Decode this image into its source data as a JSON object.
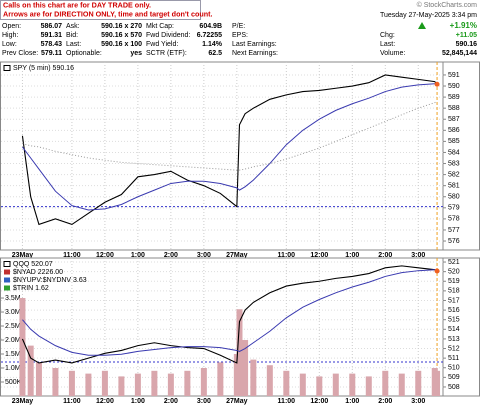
{
  "header": {
    "notice": [
      "Calls on this chart are for DAY TRADE only.",
      "Arrows are for DIRECTION ONLY, time and target don't count."
    ],
    "brand": "© StockCharts.com",
    "timestamp": "Tuesday 27-May-2025 3:34 pm"
  },
  "quote": {
    "col1": [
      [
        "Open:",
        "586.07"
      ],
      [
        "High:",
        "591.31"
      ],
      [
        "Low:",
        "578.43"
      ],
      [
        "Prev Close:",
        "579.11"
      ]
    ],
    "col2": [
      [
        "Ask:",
        "590.16 x 270"
      ],
      [
        "Bid:",
        "590.16 x 570"
      ],
      [
        "Last:",
        "590.16 x 100"
      ],
      [
        "Optionable:",
        "yes"
      ]
    ],
    "col3": [
      [
        "Mkt Cap:",
        "604.9B"
      ],
      [
        "Fwd Dividend:",
        "6.72255"
      ],
      [
        "Fwd Yield:",
        "1.14%"
      ],
      [
        "SCTR (ETF):",
        "62.5"
      ]
    ],
    "col4": [
      "P/E:",
      "EPS:",
      "Last Earnings:",
      "Next Earnings:"
    ],
    "change_pct": "+1.91%",
    "col5": [
      [
        "Chg:",
        "+11.05"
      ],
      [
        "Last:",
        "590.16"
      ],
      [
        "Volume:",
        "52,845,144"
      ]
    ]
  },
  "chart_data": [
    {
      "type": "line",
      "x": [
        0,
        0.25,
        0.5,
        1,
        1.5,
        2,
        2.5,
        3,
        3.5,
        4,
        4.5,
        5,
        5.5,
        6,
        6.5,
        6.58,
        6.75,
        7,
        7.5,
        8,
        8.5,
        9,
        9.5,
        10,
        10.5,
        11,
        11.5,
        12,
        12.5,
        12.57
      ],
      "xlim": [
        -0.65,
        12.75
      ],
      "xticks": [
        {
          "value": 0,
          "label": "23May"
        },
        {
          "value": 1.5,
          "label": "11:00"
        },
        {
          "value": 2.5,
          "label": "12:00"
        },
        {
          "value": 3.5,
          "label": "1:00"
        },
        {
          "value": 4.5,
          "label": "2:00"
        },
        {
          "value": 5.5,
          "label": "3:00"
        },
        {
          "value": 6.5,
          "label": "27May"
        },
        {
          "value": 8,
          "label": "11:00"
        },
        {
          "value": 9,
          "label": "12:00"
        },
        {
          "value": 10,
          "label": "1:00"
        },
        {
          "value": 11,
          "label": "2:00"
        },
        {
          "value": 12,
          "label": "3:00"
        }
      ],
      "ylim": [
        575.19,
        592.17
      ],
      "yticks": [
        576,
        577,
        578,
        579,
        580,
        581,
        582,
        583,
        584,
        585,
        586,
        587,
        588,
        589,
        590,
        591
      ],
      "grid": true,
      "hline": 579.11,
      "hline_color": "#3333cc",
      "series": [
        {
          "name": "SPY (5 min) 590.16",
          "color": "#000000",
          "values": [
            585.5,
            580,
            577.5,
            578,
            577.5,
            578.5,
            579.5,
            580.2,
            581.8,
            582,
            582.3,
            581.5,
            581,
            580.3,
            579.11,
            586.5,
            587.5,
            588,
            588.8,
            589.2,
            589.5,
            589.6,
            589.8,
            590,
            590.3,
            591,
            590.8,
            590.6,
            590.4,
            590.16
          ]
        },
        {
          "color": "#3a3ab0",
          "values": [
            584.5,
            583.5,
            582.5,
            580.5,
            579.2,
            578.8,
            578.9,
            579.3,
            580,
            580.6,
            581.2,
            581.4,
            581.4,
            581.2,
            580.8,
            580.6,
            580.9,
            581.5,
            583,
            584.7,
            586,
            587,
            587.8,
            588.4,
            588.9,
            589.5,
            589.9,
            590.1,
            590.2,
            590.2
          ]
        },
        {
          "color": "#999999",
          "dash": "dotted",
          "values": [
            584.8,
            584.6,
            584.5,
            584.1,
            583.8,
            583.5,
            583.3,
            583.1,
            583,
            582.9,
            582.8,
            582.7,
            582.6,
            582.5,
            582.4,
            582.4,
            582.5,
            582.7,
            583,
            583.4,
            583.9,
            584.4,
            585,
            585.6,
            586.2,
            586.8,
            587.4,
            588,
            588.5,
            588.6
          ]
        }
      ]
    },
    {
      "type": "line",
      "x": [
        0,
        0.25,
        0.5,
        1,
        1.5,
        2,
        2.5,
        3,
        3.5,
        4,
        4.5,
        5,
        5.5,
        6,
        6.5,
        6.58,
        6.75,
        7,
        7.5,
        8,
        8.5,
        9,
        9.5,
        10,
        10.5,
        11,
        11.5,
        12,
        12.5,
        12.57
      ],
      "xlim": [
        -0.65,
        12.75
      ],
      "xticks": [
        {
          "value": 0,
          "label": "23May"
        },
        {
          "value": 1.5,
          "label": "11:00"
        },
        {
          "value": 2.5,
          "label": "12:00"
        },
        {
          "value": 3.5,
          "label": "1:00"
        },
        {
          "value": 4.5,
          "label": "2:00"
        },
        {
          "value": 5.5,
          "label": "3:00"
        },
        {
          "value": 6.5,
          "label": "27May"
        },
        {
          "value": 8,
          "label": "11:00"
        },
        {
          "value": 9,
          "label": "12:00"
        },
        {
          "value": 10,
          "label": "1:00"
        },
        {
          "value": 11,
          "label": "2:00"
        },
        {
          "value": 12,
          "label": "3:00"
        }
      ],
      "ylim": [
        507.06,
        521.42
      ],
      "yticks": [
        508,
        509,
        510,
        511,
        512,
        513,
        514,
        515,
        516,
        517,
        518,
        519,
        520,
        521
      ],
      "y2lim": [
        0,
        4930000
      ],
      "y2ticks": [
        {
          "value": 500000,
          "label": "500K"
        },
        {
          "value": 1000000,
          "label": "1.0M"
        },
        {
          "value": 1500000,
          "label": "1.5M"
        },
        {
          "value": 2000000,
          "label": "2.0M"
        },
        {
          "value": 2500000,
          "label": "2.5M"
        },
        {
          "value": 3000000,
          "label": "3.0M"
        },
        {
          "value": 3500000,
          "label": "3.5M"
        }
      ],
      "grid": true,
      "hline": 510.6,
      "hline_color": "#3333cc",
      "legend_lines": [
        "$NYAD 2226.00",
        "$NYUPV:$NYDNV 3.63",
        "$TRIN 1.62"
      ],
      "series": [
        {
          "type": "bar",
          "axis": "y2",
          "color": "#d9a6ac",
          "values": [
            3500000,
            1800000,
            1200000,
            1000000,
            900000,
            800000,
            900000,
            700000,
            800000,
            900000,
            800000,
            900000,
            1000000,
            1200000,
            1500000,
            3100000,
            2000000,
            1300000,
            1100000,
            900000,
            800000,
            700000,
            800000,
            800000,
            700000,
            900000,
            800000,
            900000,
            1000000,
            900000
          ]
        },
        {
          "name": "QQQ 520.07",
          "color": "#000000",
          "values": [
            513,
            511,
            510.5,
            510.8,
            510.5,
            511,
            511.5,
            511.8,
            512.3,
            512.6,
            512.3,
            512.1,
            512,
            511.3,
            510.5,
            514.8,
            516,
            516.8,
            517.8,
            518.5,
            518.8,
            519,
            519.3,
            519.5,
            519.8,
            520.4,
            520.6,
            520.4,
            520.2,
            520.07
          ]
        },
        {
          "color": "#3a3ab0",
          "values": [
            515,
            514,
            513.3,
            512.3,
            511.6,
            511.3,
            511.3,
            511.4,
            511.7,
            511.9,
            512.1,
            512.2,
            512.2,
            512.1,
            511.8,
            511.7,
            512,
            512.6,
            513.8,
            515.2,
            516.3,
            517.1,
            517.8,
            518.4,
            518.9,
            519.5,
            519.9,
            520.1,
            520.2,
            520.2
          ]
        }
      ]
    }
  ]
}
